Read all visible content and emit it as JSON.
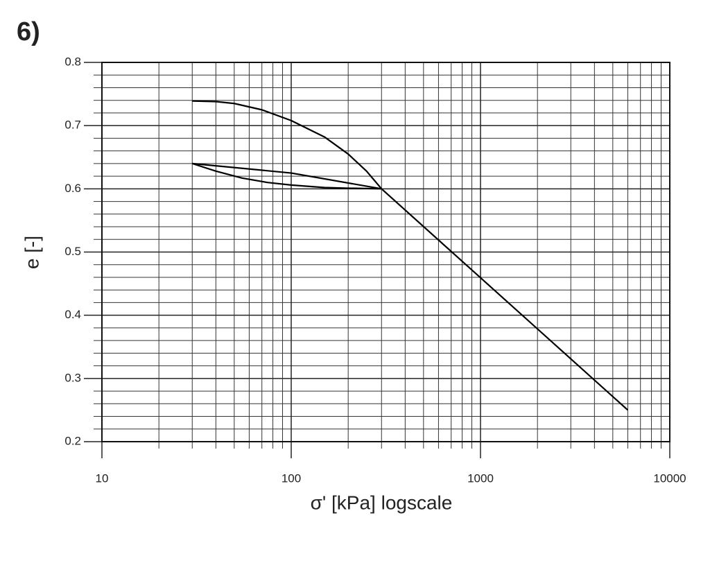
{
  "chart_data": {
    "type": "line",
    "title": "6)",
    "xlabel": "σ' [kPa] logscale",
    "ylabel": "e [-]",
    "xscale": "log",
    "xlim": [
      10,
      10000
    ],
    "ylim": [
      0.2,
      0.8
    ],
    "xticks": [
      10,
      100,
      1000,
      10000
    ],
    "xminorticks": [
      20,
      30,
      40,
      50,
      60,
      70,
      80,
      90,
      200,
      300,
      400,
      500,
      600,
      700,
      800,
      900,
      2000,
      3000,
      4000,
      5000,
      6000,
      7000,
      8000,
      9000
    ],
    "yticks": [
      0.2,
      0.3,
      0.4,
      0.5,
      0.6,
      0.7,
      0.8
    ],
    "yminorticks": [
      0.22,
      0.24,
      0.26,
      0.28,
      0.32,
      0.34,
      0.36,
      0.38,
      0.42,
      0.44,
      0.46,
      0.48,
      0.52,
      0.54,
      0.56,
      0.58,
      0.62,
      0.64,
      0.66,
      0.68,
      0.72,
      0.74,
      0.76,
      0.78
    ],
    "grid": true,
    "series": [
      {
        "color": "#000000",
        "x": [
          30,
          40,
          50,
          70,
          100,
          150,
          200,
          250,
          300,
          6000
        ],
        "values": [
          0.739,
          0.738,
          0.735,
          0.725,
          0.708,
          0.682,
          0.655,
          0.628,
          0.6,
          0.25
        ]
      },
      {
        "color": "#000000",
        "x": [
          30,
          100,
          300
        ],
        "values": [
          0.64,
          0.625,
          0.6
        ]
      },
      {
        "color": "#000000",
        "x": [
          30,
          40,
          55,
          75,
          100,
          150,
          200,
          300
        ],
        "values": [
          0.64,
          0.628,
          0.617,
          0.61,
          0.606,
          0.602,
          0.601,
          0.6
        ]
      }
    ]
  }
}
